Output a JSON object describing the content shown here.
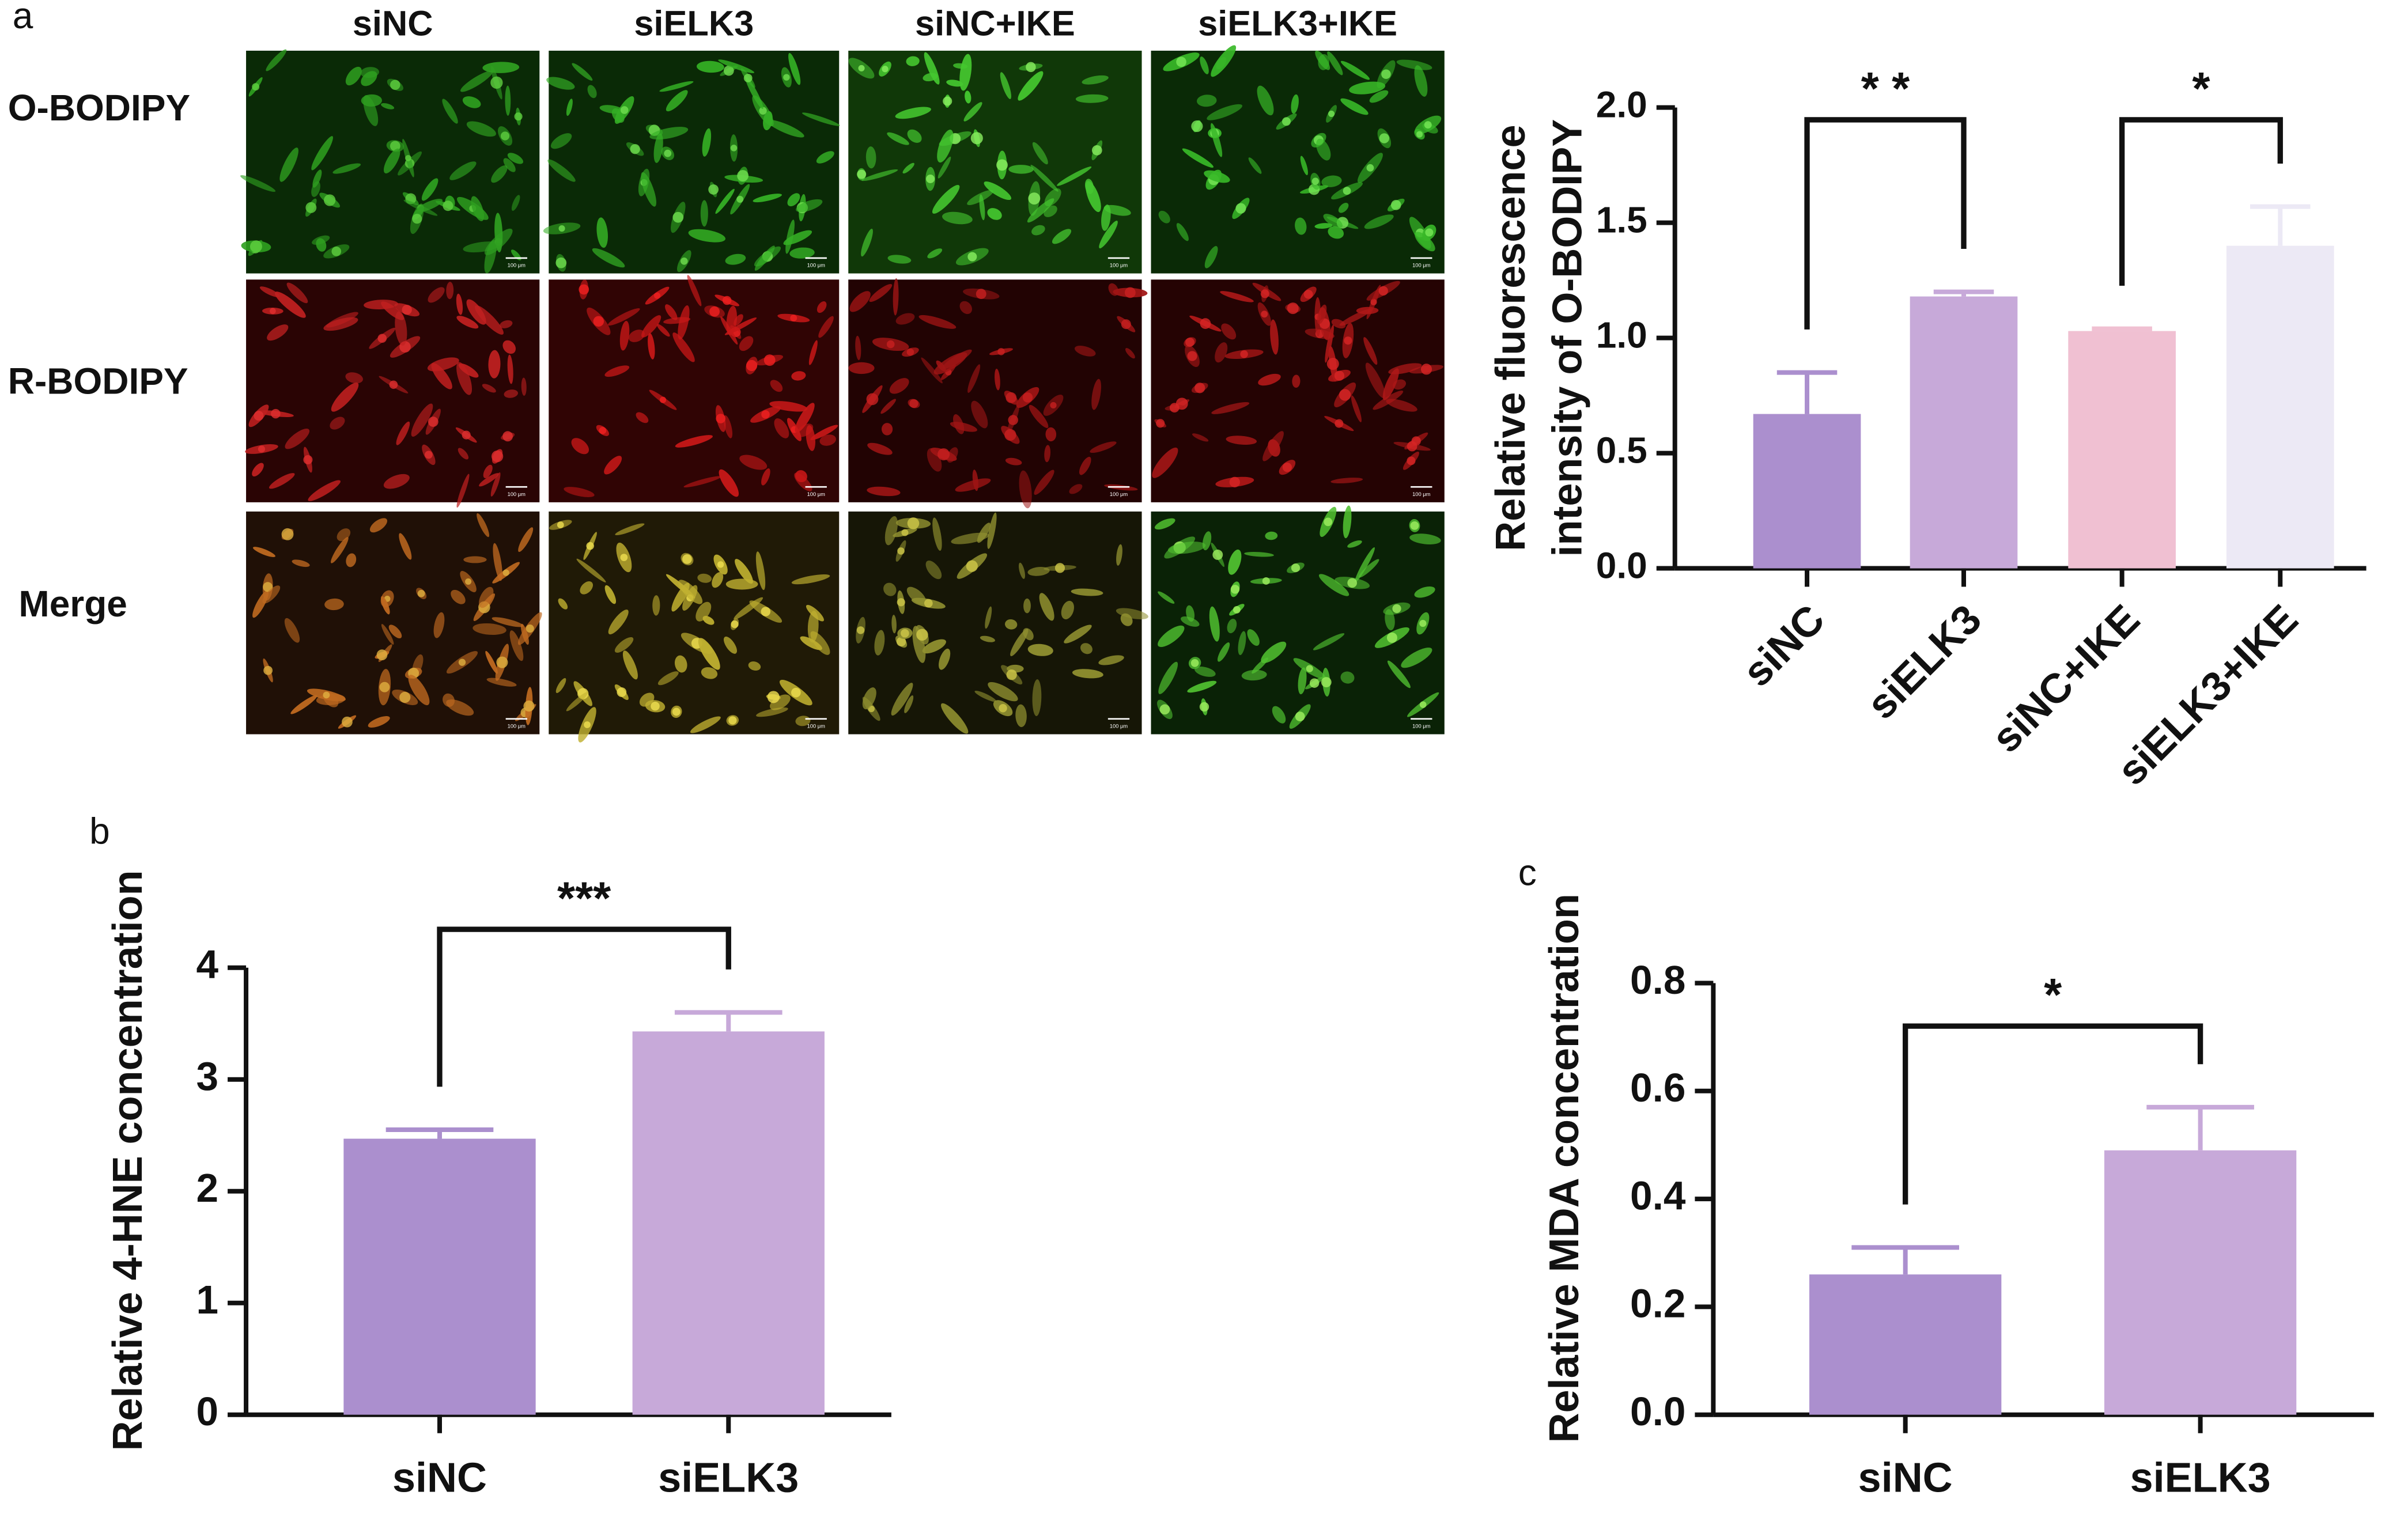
{
  "microscopy": {
    "panel_label": "a",
    "columns": [
      "siNC",
      "siELK3",
      "siNC+IKE",
      "siELK3+IKE"
    ],
    "rows": [
      "O-BODIPY",
      "R-BODIPY",
      "Merge"
    ],
    "scale_bar": "100 μm"
  },
  "chart_data": [
    {
      "type": "bar",
      "ylabel": [
        "Relative fluorescence",
        "intensity of  O-BODIPY"
      ],
      "categories": [
        "siNC",
        "siELK3",
        "siNC+IKE",
        "siELK3+IKE"
      ],
      "values": [
        0.67,
        1.18,
        1.03,
        1.4
      ],
      "errors": [
        0.18,
        0.02,
        0.01,
        0.17
      ],
      "colors": [
        "#ab8fce",
        "#c7a9d9",
        "#f0c0d2",
        "#ece9f5"
      ],
      "ylim": [
        0,
        2
      ],
      "yticks": [
        {
          "value": 0,
          "label": "0.0"
        },
        {
          "value": 0.5,
          "label": "0.5"
        },
        {
          "value": 1,
          "label": "1.0"
        },
        {
          "value": 1.5,
          "label": "1.5"
        },
        {
          "value": 2,
          "label": "2.0"
        }
      ],
      "significance": [
        "* *",
        "*"
      ]
    },
    {
      "type": "bar",
      "panel_label": "b",
      "ylabel": [
        "Relative  4-HNE  concentration"
      ],
      "categories": [
        "siNC",
        "siELK3"
      ],
      "values": [
        2.47,
        3.43
      ],
      "errors": [
        0.08,
        0.17
      ],
      "colors": [
        "#ab8fce",
        "#c7a9d9"
      ],
      "ylim": [
        0,
        4
      ],
      "yticks": [
        0,
        1,
        2,
        3,
        4
      ],
      "significance": [
        "***"
      ]
    },
    {
      "type": "bar",
      "panel_label": "c",
      "ylabel": [
        "Relative  MDA  concentration"
      ],
      "categories": [
        "siNC",
        "siELK3"
      ],
      "values": [
        0.26,
        0.49
      ],
      "errors": [
        0.05,
        0.08
      ],
      "colors": [
        "#ab8fce",
        "#c7a9d9"
      ],
      "ylim": [
        0,
        0.8
      ],
      "yticks": [
        {
          "value": 0,
          "label": "0.0"
        },
        {
          "value": 0.2,
          "label": "0.2"
        },
        {
          "value": 0.4,
          "label": "0.4"
        },
        {
          "value": 0.6,
          "label": "0.6"
        },
        {
          "value": 0.8,
          "label": "0.8"
        }
      ],
      "significance": [
        "*"
      ]
    }
  ]
}
